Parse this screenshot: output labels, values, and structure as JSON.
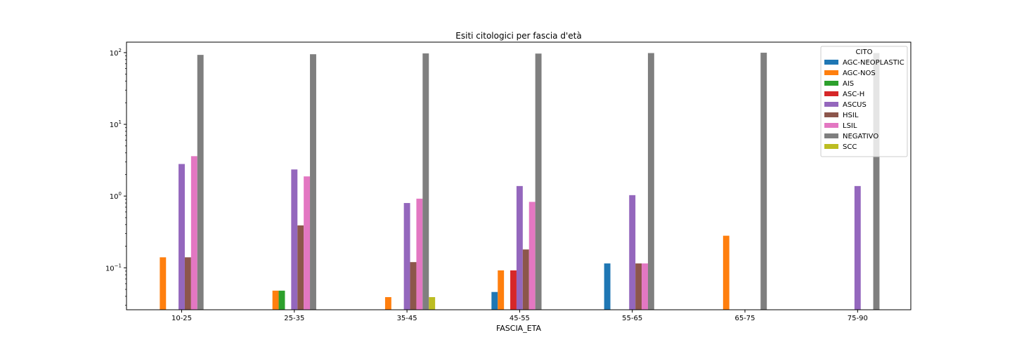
{
  "chart_data": {
    "type": "bar",
    "title": "Esiti citologici per fascia d'età",
    "xlabel": "FASCIA_ETA",
    "ylabel": "",
    "yscale": "log",
    "ylim": [
      0.026,
      140
    ],
    "y_ticks": [
      {
        "value": 0.1,
        "base": "10",
        "exp": "−1"
      },
      {
        "value": 1,
        "base": "10",
        "exp": "0"
      },
      {
        "value": 10,
        "base": "10",
        "exp": "1"
      },
      {
        "value": 100,
        "base": "10",
        "exp": "2"
      }
    ],
    "categories": [
      "10-25",
      "25-35",
      "35-45",
      "45-55",
      "55-65",
      "65-75",
      "75-90"
    ],
    "legend_title": "CITO",
    "legend_position": "top-right",
    "series": [
      {
        "name": "AGC-NEOPLASTIC",
        "color": "#1f77b4",
        "values": [
          null,
          null,
          null,
          0.046,
          0.115,
          null,
          null
        ]
      },
      {
        "name": "AGC-NOS",
        "color": "#ff7f0e",
        "values": [
          0.14,
          0.048,
          0.039,
          0.092,
          null,
          0.28,
          null
        ]
      },
      {
        "name": "AIS",
        "color": "#2ca02c",
        "values": [
          null,
          0.048,
          null,
          null,
          null,
          null,
          null
        ]
      },
      {
        "name": "ASC-H",
        "color": "#d62728",
        "values": [
          null,
          null,
          null,
          0.092,
          null,
          null,
          null
        ]
      },
      {
        "name": "ASCUS",
        "color": "#9467bd",
        "values": [
          2.8,
          2.35,
          0.8,
          1.38,
          1.03,
          null,
          1.38
        ]
      },
      {
        "name": "HSIL",
        "color": "#8c564b",
        "values": [
          0.14,
          0.39,
          0.12,
          0.18,
          0.115,
          null,
          null
        ]
      },
      {
        "name": "LSIL",
        "color": "#e377c2",
        "values": [
          3.6,
          1.88,
          0.92,
          0.83,
          0.115,
          null,
          null
        ]
      },
      {
        "name": "NEGATIVO",
        "color": "#7f7f7f",
        "values": [
          93.0,
          95.0,
          97.5,
          97.0,
          98.6,
          99.7,
          98.6
        ]
      },
      {
        "name": "SCC",
        "color": "#bcbd22",
        "values": [
          null,
          null,
          0.039,
          null,
          null,
          null,
          null
        ]
      }
    ]
  }
}
